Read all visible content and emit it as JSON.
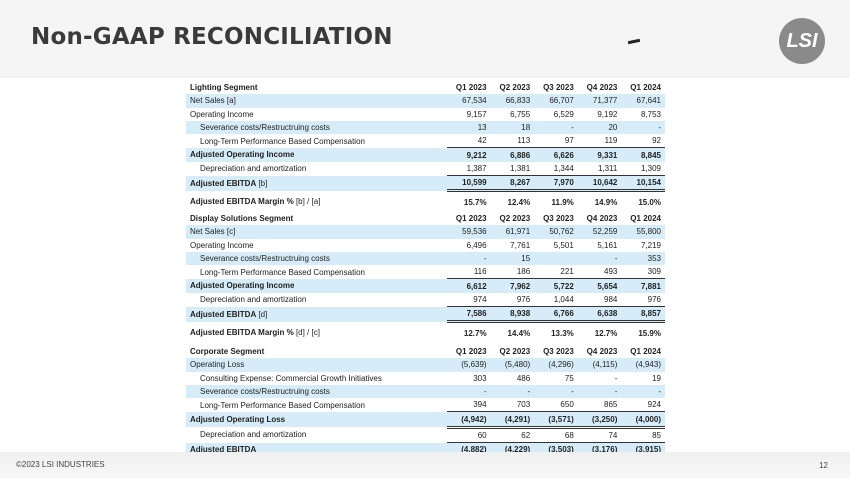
{
  "header": {
    "title": "Non-GAAP RECONCILIATION",
    "logo_text": "LSI"
  },
  "footer": {
    "copyright": "©2023 LSI INDUSTRIES",
    "page_number": "12"
  },
  "sections": [
    {
      "name": "lighting",
      "title": "Lighting Segment",
      "columns": [
        "Q1 2023",
        "Q2 2023",
        "Q3 2023",
        "Q4 2023",
        "Q1 2024"
      ],
      "rows": [
        {
          "label": "Net Sales [a]",
          "kind": "shade",
          "values": [
            "67,534",
            "66,833",
            "66,707",
            "71,377",
            "67,641"
          ]
        },
        {
          "label": "Operating Income",
          "kind": "",
          "values": [
            "9,157",
            "6,755",
            "6,529",
            "9,192",
            "8,753"
          ]
        },
        {
          "label": "Severance costs/Restructruing costs",
          "kind": "shade indent",
          "values": [
            "13",
            "18",
            "-",
            "20",
            "-"
          ]
        },
        {
          "label": "Long-Term Performance Based Compensation",
          "kind": "indent",
          "values": [
            "42",
            "113",
            "97",
            "119",
            "92"
          ]
        },
        {
          "label": "Adjusted Operating Income",
          "kind": "shade bold topline",
          "values": [
            "9,212",
            "6,886",
            "6,626",
            "9,331",
            "8,845"
          ]
        },
        {
          "label": "Depreciation and amortization",
          "kind": "indent",
          "values": [
            "1,387",
            "1,381",
            "1,344",
            "1,311",
            "1,309"
          ]
        },
        {
          "label": "Adjusted EBITDA",
          "suffix": " [b]",
          "kind": "shade bold topline dbl",
          "values": [
            "10,599",
            "8,267",
            "7,970",
            "10,642",
            "10,154"
          ]
        },
        {
          "label": "Adjusted EBITDA Margin %",
          "suffix": " [b] / [a]",
          "kind": "bold gap",
          "values": [
            "15.7%",
            "12.4%",
            "11.9%",
            "14.9%",
            "15.0%"
          ]
        }
      ]
    },
    {
      "name": "display",
      "title": "Display Solutions Segment",
      "columns": [
        "Q1 2023",
        "Q2 2023",
        "Q3 2023",
        "Q4 2023",
        "Q1 2024"
      ],
      "rows": [
        {
          "label": "Net Sales [c]",
          "kind": "shade",
          "values": [
            "59,536",
            "61,971",
            "50,762",
            "52,259",
            "55,800"
          ]
        },
        {
          "label": "Operating Income",
          "kind": "",
          "values": [
            "6,496",
            "7,761",
            "5,501",
            "5,161",
            "7,219"
          ]
        },
        {
          "label": "Severance costs/Restructruing costs",
          "kind": "shade indent",
          "values": [
            "-",
            "15",
            "",
            "-",
            "353"
          ]
        },
        {
          "label": "Long-Term Performance Based Compensation",
          "kind": "indent",
          "values": [
            "116",
            "186",
            "221",
            "493",
            "309"
          ]
        },
        {
          "label": "Adjusted Operating Income",
          "kind": "shade bold topline",
          "values": [
            "6,612",
            "7,962",
            "5,722",
            "5,654",
            "7,881"
          ]
        },
        {
          "label": "Depreciation and amortization",
          "kind": "indent",
          "values": [
            "974",
            "976",
            "1,044",
            "984",
            "976"
          ]
        },
        {
          "label": "Adjusted EBITDA",
          "suffix": " [d]",
          "kind": "shade bold topline dbl",
          "values": [
            "7,586",
            "8,938",
            "6,766",
            "6,638",
            "8,857"
          ]
        },
        {
          "label": "Adjusted EBITDA Margin %",
          "suffix": " [d] / [c]",
          "kind": "bold gap",
          "values": [
            "12.7%",
            "14.4%",
            "13.3%",
            "12.7%",
            "15.9%"
          ]
        }
      ]
    },
    {
      "name": "corporate",
      "title": "Corporate Segment",
      "columns": [
        "Q1 2023",
        "Q2 2023",
        "Q3 2023",
        "Q4 2023",
        "Q1 2024"
      ],
      "rows": [
        {
          "label": "Operating Loss",
          "kind": "shade",
          "values": [
            "(5,639)",
            "(5,480)",
            "(4,296)",
            "(4,115)",
            "(4,943)"
          ]
        },
        {
          "label": "Consulting Expense: Commercial Growth Initiatives",
          "kind": "indent",
          "values": [
            "303",
            "486",
            "75",
            "-",
            "19"
          ]
        },
        {
          "label": "Severance costs/Restructruing costs",
          "kind": "shade indent",
          "values": [
            "-",
            "-",
            "-",
            "-",
            "-"
          ]
        },
        {
          "label": "Long-Term Performance Based Compensation",
          "kind": "indent",
          "values": [
            "394",
            "703",
            "650",
            "865",
            "924"
          ]
        },
        {
          "label": "Adjusted Operating Loss",
          "kind": "shade bold topline dbl",
          "values": [
            "(4,942)",
            "(4,291)",
            "(3,571)",
            "(3,250)",
            "(4,000)"
          ]
        },
        {
          "label": "Depreciation and amortization",
          "kind": "indent",
          "values": [
            "60",
            "62",
            "68",
            "74",
            "85"
          ]
        },
        {
          "label": "Adjusted EBITDA",
          "kind": "shade bold topline uline",
          "values": [
            "(4,882)",
            "(4,229)",
            "(3,503)",
            "(3,176)",
            "(3,915)"
          ]
        }
      ]
    }
  ],
  "colors": {
    "row_shade": "#d6ecf8",
    "logo": "#8a8a8a",
    "header_bg": "#f5f5f5"
  }
}
